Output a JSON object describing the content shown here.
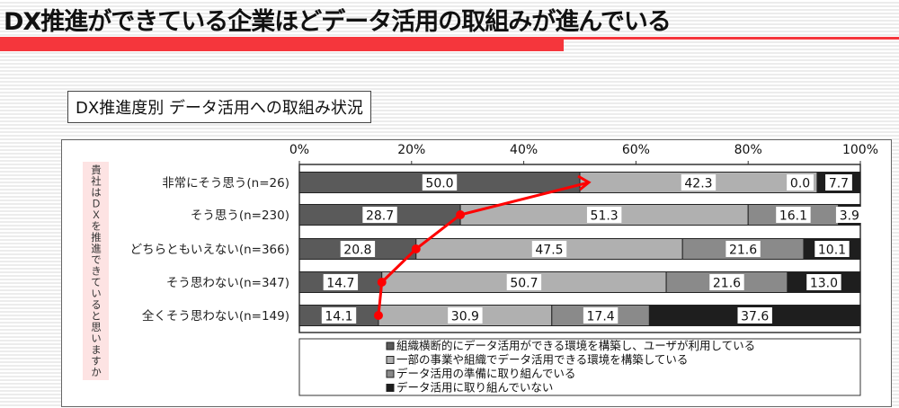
{
  "header": {
    "title": "DX推進ができている企業ほどデータ活用の取組みが進んでいる"
  },
  "subtitle": "DX推進度別 データ活用への取組み状況",
  "colors": {
    "accent": "#f5363c",
    "seg1": "#5a5a5a",
    "seg2": "#b0b0b0",
    "seg3": "#8a8a8a",
    "seg4": "#1e1e1e",
    "trend": "#ff0000"
  },
  "chart_data": {
    "type": "bar",
    "stacked": true,
    "orientation": "horizontal",
    "title": "DX推進度別 データ活用への取組み状況",
    "ylabel": "貴社はＤＸを推進できていると思いますか",
    "xlim": [
      0,
      100
    ],
    "xticks": [
      "0%",
      "20%",
      "40%",
      "60%",
      "80%",
      "100%"
    ],
    "categories": [
      "非常にそう思う(n=26)",
      "そう思う(n=230)",
      "どちらともいえない(n=366)",
      "そう思わない(n=347)",
      "全くそう思わない(n=149)"
    ],
    "series": [
      {
        "name": "組織横断的にデータ活用ができる環境を構築し、ユーザが利用している",
        "values": [
          50.0,
          28.7,
          20.8,
          14.7,
          14.1
        ]
      },
      {
        "name": "一部の事業や組織でデータ活用できる環境を構築している",
        "values": [
          42.3,
          51.3,
          47.5,
          50.7,
          30.9
        ]
      },
      {
        "name": "データ活用の準備に取り組んでいる",
        "values": [
          0.0,
          16.1,
          21.6,
          21.6,
          17.4
        ]
      },
      {
        "name": "データ活用に取り組んでいない",
        "values": [
          7.7,
          3.9,
          10.1,
          13.0,
          37.6
        ]
      }
    ],
    "legend_position": "bottom",
    "annotation": "red trend arrow connecting first-segment ends"
  }
}
